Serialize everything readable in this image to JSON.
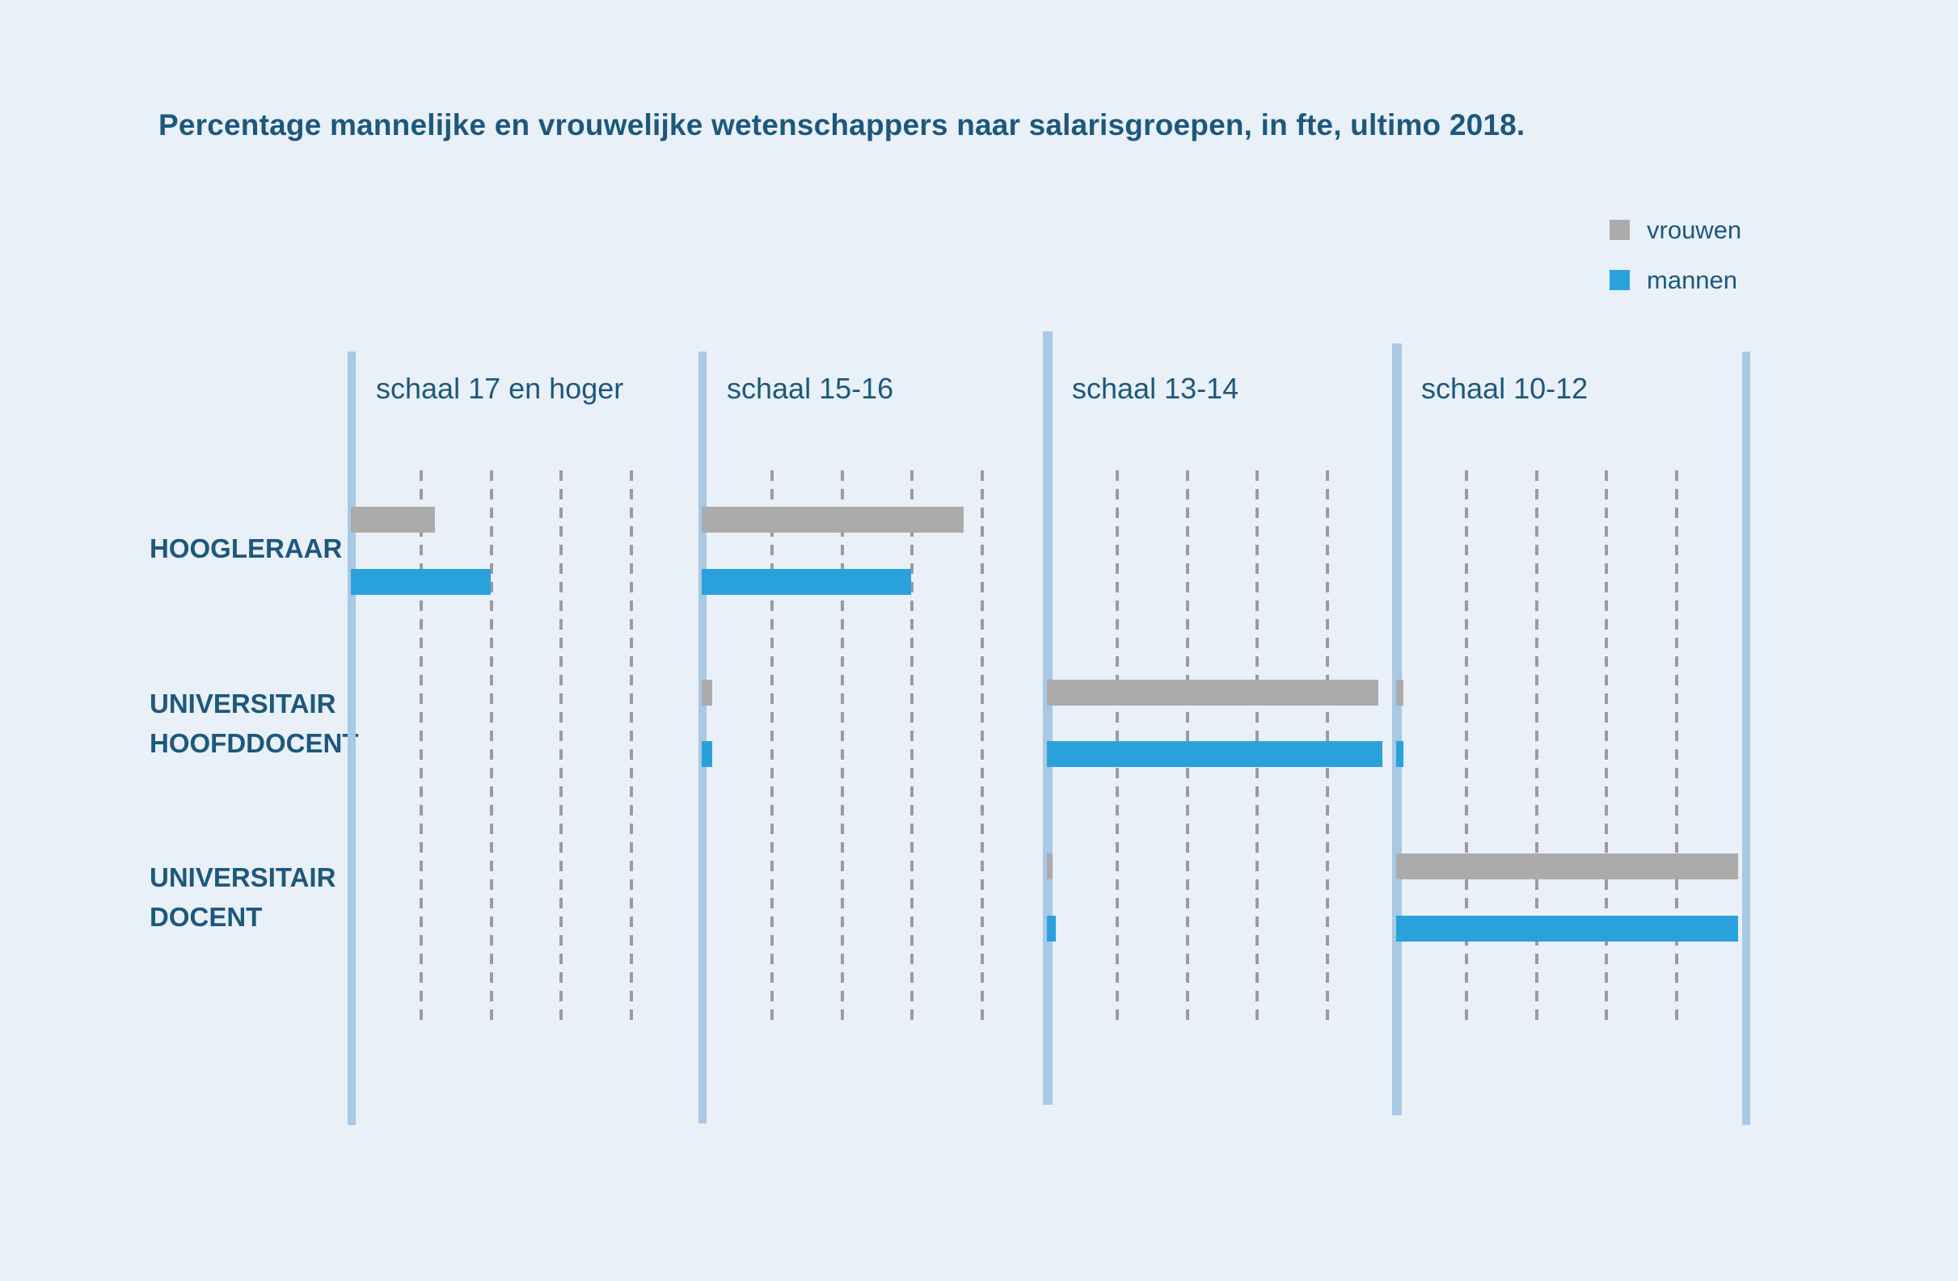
{
  "title": "Percentage mannelijke en vrouwelijke wetenschappers naar salarisgroepen, in fte, ultimo 2018.",
  "legend": {
    "items": [
      {
        "label": "vrouwen",
        "color": "#ababab"
      },
      {
        "label": "mannen",
        "color": "#29a2dc"
      }
    ]
  },
  "rows": [
    {
      "label_lines": [
        "HOOGLERAAR"
      ]
    },
    {
      "label_lines": [
        "UNIVERSITAIR",
        "HOOFDDOCENT"
      ]
    },
    {
      "label_lines": [
        "UNIVERSITAIR",
        "DOCENT"
      ]
    }
  ],
  "colors": {
    "background": "#e9f0f8",
    "text": "#1d587c",
    "axis_line": "#a9c8e4",
    "gridline": "#9c9c9c",
    "vrouwen": "#ababab",
    "mannen": "#29a2dc"
  },
  "chart_data": {
    "type": "bar",
    "orientation": "horizontal",
    "title": "Percentage mannelijke en vrouwelijke wetenschappers naar salarisgroepen, in fte, ultimo 2018.",
    "unit": "% van fte",
    "categories": [
      "HOOGLERAAR",
      "UNIVERSITAIR HOOFDDOCENT",
      "UNIVERSITAIR DOCENT"
    ],
    "xlim": [
      0,
      50
    ],
    "gridline_step": 10,
    "grid": "dashed-vertical",
    "legend_position": "top-right",
    "panels": [
      {
        "label": "schaal 17 en hoger",
        "series": [
          {
            "name": "vrouwen",
            "values": [
              12,
              0,
              0
            ]
          },
          {
            "name": "mannen",
            "values": [
              20,
              0,
              0
            ]
          }
        ]
      },
      {
        "label": "schaal 15-16",
        "series": [
          {
            "name": "vrouwen",
            "values": [
              37.5,
              1.5,
              0
            ]
          },
          {
            "name": "mannen",
            "values": [
              30,
              1.5,
              0
            ]
          }
        ]
      },
      {
        "label": "schaal 13-14",
        "series": [
          {
            "name": "vrouwen",
            "values": [
              0,
              47.5,
              0.8
            ]
          },
          {
            "name": "mannen",
            "values": [
              0,
              48,
              1.3
            ]
          }
        ]
      },
      {
        "label": "schaal 10-12",
        "series": [
          {
            "name": "vrouwen",
            "values": [
              0,
              1,
              49
            ]
          },
          {
            "name": "mannen",
            "values": [
              0,
              1,
              49
            ]
          }
        ]
      }
    ]
  }
}
